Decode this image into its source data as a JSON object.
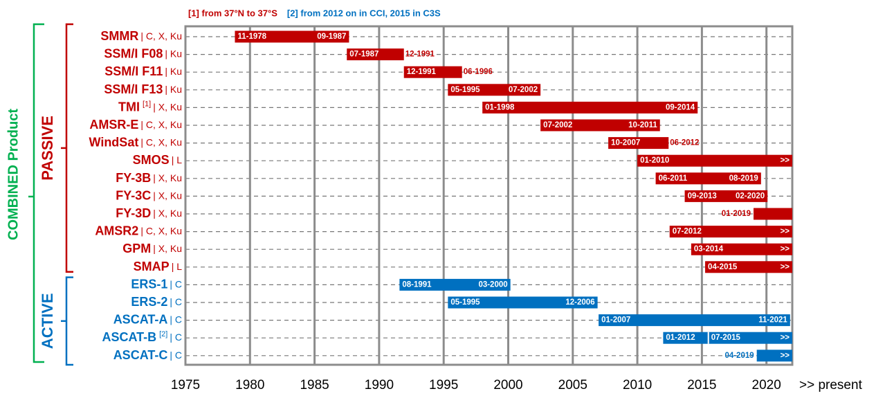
{
  "chart_data": {
    "type": "timeline",
    "footnotes": [
      {
        "text": "[1] from 37°N to 37°S",
        "color": "#c00000"
      },
      {
        "text": "[2] from 2012 on in CCI, 2015 in C3S",
        "color": "#0070c0"
      }
    ],
    "combined_label": "COMBINED Product",
    "combined_color": "#00b050",
    "xlim": [
      1975,
      2022
    ],
    "xticks": [
      1975,
      1980,
      1985,
      1990,
      1995,
      2000,
      2005,
      2010,
      2015,
      2020
    ],
    "x_end_label": ">> present",
    "grid": true,
    "groups": [
      {
        "name": "PASSIVE",
        "color": "#c00000",
        "rows": [
          {
            "name": "SMMR",
            "bands": "| C, X, Ku",
            "start": 1978.83,
            "start_label": "11-1978",
            "end": 1987.67,
            "end_label": "09-1987"
          },
          {
            "name": "SSM/I F08",
            "bands": "| Ku",
            "start": 1987.5,
            "start_label": "07-1987",
            "end": 1991.92,
            "end_label": "12-1991"
          },
          {
            "name": "SSM/I F11",
            "bands": "| Ku",
            "start": 1991.92,
            "start_label": "12-1991",
            "end": 1996.42,
            "end_label": "06-1996"
          },
          {
            "name": "SSM/I F13",
            "bands": "| Ku",
            "start": 1995.33,
            "start_label": "05-1995",
            "end": 2002.5,
            "end_label": "07-2002"
          },
          {
            "name": "TMI",
            "note": "[1]",
            "bands": "| X, Ku",
            "start": 1998.0,
            "start_label": "01-1998",
            "end": 2014.67,
            "end_label": "09-2014"
          },
          {
            "name": "AMSR-E",
            "bands": "| C, X, Ku",
            "start": 2002.5,
            "start_label": "07-2002",
            "end": 2011.75,
            "end_label": "10-2011"
          },
          {
            "name": "WindSat",
            "bands": "| C, X, Ku",
            "start": 2007.75,
            "start_label": "10-2007",
            "end": 2012.42,
            "end_label": "06-2012"
          },
          {
            "name": "SMOS",
            "bands": "| L",
            "start": 2010.0,
            "start_label": "01-2010",
            "end": null,
            "end_label": ">>"
          },
          {
            "name": "FY-3B",
            "bands": "| X, Ku",
            "start": 2011.42,
            "start_label": "06-2011",
            "end": 2019.58,
            "end_label": "08-2019"
          },
          {
            "name": "FY-3C",
            "bands": "| X, Ku",
            "start": 2013.67,
            "start_label": "09-2013",
            "end": 2020.08,
            "end_label": "02-2020"
          },
          {
            "name": "FY-3D",
            "bands": "| X, Ku",
            "start": 2019.0,
            "start_label": "01-2019",
            "end": null
          },
          {
            "name": "AMSR2",
            "bands": "| C, X, Ku",
            "start": 2012.5,
            "start_label": "07-2012",
            "end": null,
            "end_label": ">>"
          },
          {
            "name": "GPM",
            "bands": "| X, Ku",
            "start": 2014.17,
            "start_label": "03-2014",
            "end": null,
            "end_label": ">>"
          },
          {
            "name": "SMAP",
            "bands": "| L",
            "start": 2015.25,
            "start_label": "04-2015",
            "end": null,
            "end_label": ">>"
          }
        ]
      },
      {
        "name": "ACTIVE",
        "color": "#0070c0",
        "rows": [
          {
            "name": "ERS-1",
            "bands": "| C",
            "start": 1991.58,
            "start_label": "08-1991",
            "end": 2000.17,
            "end_label": "03-2000"
          },
          {
            "name": "ERS-2",
            "bands": "| C",
            "start": 1995.33,
            "start_label": "05-1995",
            "end": 2006.92,
            "end_label": "12-2006"
          },
          {
            "name": "ASCAT-A",
            "bands": "| C",
            "start": 2007.0,
            "start_label": "01-2007",
            "end": 2021.83,
            "end_label": "11-2021"
          },
          {
            "name": "ASCAT-B",
            "note": "[2]",
            "bands": "| C",
            "start": 2012.0,
            "start_label": "01-2012",
            "mid": 2015.5,
            "mid_label": "07-2015",
            "end": null,
            "end_label": ">>"
          },
          {
            "name": "ASCAT-C",
            "bands": "| C",
            "start": 2019.25,
            "start_label": "04-2019",
            "end": null,
            "end_label": ">>"
          }
        ]
      }
    ]
  }
}
